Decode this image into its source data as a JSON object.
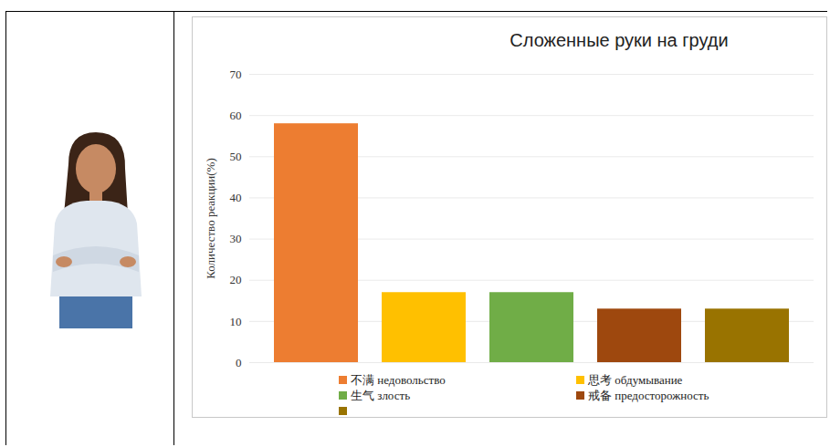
{
  "chart_data": {
    "type": "bar",
    "title": "Сложенные руки на груди",
    "y_label": "Количество реакции(%)",
    "categories": [
      "不满 недовольство",
      "思考 обдумывание",
      "生气 злость",
      "戒备 предосторожность",
      null
    ],
    "values": [
      58,
      17,
      17,
      13,
      13
    ],
    "colors": [
      "#ED7D31",
      "#FFC000",
      "#70AD47",
      "#9E480E",
      "#997300"
    ],
    "ylim": [
      0,
      70
    ],
    "yticks": [
      0,
      10,
      20,
      30,
      40,
      50,
      60,
      70
    ],
    "grid": true,
    "legend": "bottom",
    "tick_labels": "y"
  }
}
